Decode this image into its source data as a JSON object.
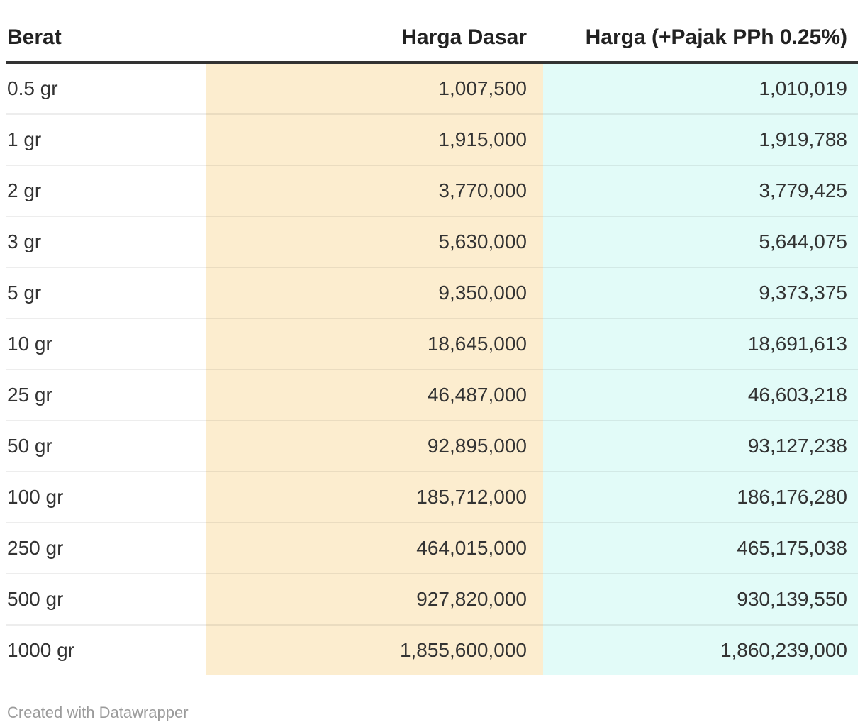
{
  "chart_data": {
    "type": "table",
    "title": "",
    "columns": [
      "Berat",
      "Harga Dasar",
      "Harga (+Pajak PPh 0.25%)"
    ],
    "rows": [
      {
        "berat": "0.5 gr",
        "harga_dasar": 1007500,
        "harga_pajak": 1010019
      },
      {
        "berat": "1 gr",
        "harga_dasar": 1915000,
        "harga_pajak": 1919788
      },
      {
        "berat": "2 gr",
        "harga_dasar": 3770000,
        "harga_pajak": 3779425
      },
      {
        "berat": "3 gr",
        "harga_dasar": 5630000,
        "harga_pajak": 5644075
      },
      {
        "berat": "5 gr",
        "harga_dasar": 9350000,
        "harga_pajak": 9373375
      },
      {
        "berat": "10 gr",
        "harga_dasar": 18645000,
        "harga_pajak": 18691613
      },
      {
        "berat": "25 gr",
        "harga_dasar": 46487000,
        "harga_pajak": 46603218
      },
      {
        "berat": "50 gr",
        "harga_dasar": 92895000,
        "harga_pajak": 93127238
      },
      {
        "berat": "100 gr",
        "harga_dasar": 185712000,
        "harga_pajak": 186176280
      },
      {
        "berat": "250 gr",
        "harga_dasar": 464015000,
        "harga_pajak": 465175038
      },
      {
        "berat": "500 gr",
        "harga_dasar": 927820000,
        "harga_pajak": 930139550
      },
      {
        "berat": "1000 gr",
        "harga_dasar": 1855600000,
        "harga_pajak": 1860239000
      }
    ]
  },
  "table": {
    "header": {
      "berat": "Berat",
      "dasar": "Harga Dasar",
      "pajak": "Harga (+Pajak PPh 0.25%)"
    },
    "rows": [
      {
        "berat": "0.5 gr",
        "dasar": "1,007,500",
        "pajak": "1,010,019"
      },
      {
        "berat": "1 gr",
        "dasar": "1,915,000",
        "pajak": "1,919,788"
      },
      {
        "berat": "2 gr",
        "dasar": "3,770,000",
        "pajak": "3,779,425"
      },
      {
        "berat": "3 gr",
        "dasar": "5,630,000",
        "pajak": "5,644,075"
      },
      {
        "berat": "5 gr",
        "dasar": "9,350,000",
        "pajak": "9,373,375"
      },
      {
        "berat": "10 gr",
        "dasar": "18,645,000",
        "pajak": "18,691,613"
      },
      {
        "berat": "25 gr",
        "dasar": "46,487,000",
        "pajak": "46,603,218"
      },
      {
        "berat": "50 gr",
        "dasar": "92,895,000",
        "pajak": "93,127,238"
      },
      {
        "berat": "100 gr",
        "dasar": "185,712,000",
        "pajak": "186,176,280"
      },
      {
        "berat": "250 gr",
        "dasar": "464,015,000",
        "pajak": "465,175,038"
      },
      {
        "berat": "500 gr",
        "dasar": "927,820,000",
        "pajak": "930,139,550"
      },
      {
        "berat": "1000 gr",
        "dasar": "1,855,600,000",
        "pajak": "1,860,239,000"
      }
    ]
  },
  "footer": {
    "credit": "Created with Datawrapper"
  },
  "colors": {
    "harga_dasar_bg": "#FCEDCF",
    "harga_pajak_bg": "#E2FBF8",
    "header_border": "#333333",
    "cell_text": "#333333",
    "header_text": "#222222",
    "credit_text": "#9B9B9B"
  }
}
